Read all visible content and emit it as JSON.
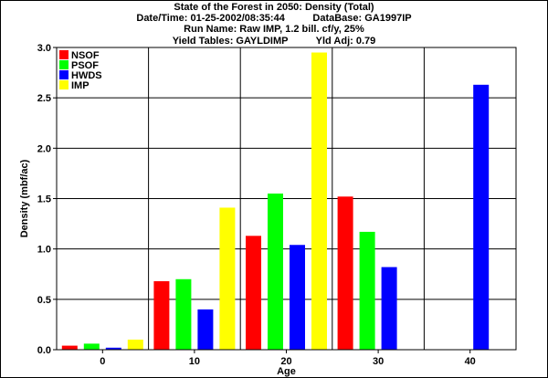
{
  "header": {
    "title": "State of the Forest in 2050: Density (Total)",
    "datetime": "Date/Time: 01-25-2002/08:35:44",
    "database": "DataBase: GA1997IP",
    "run_name": "Run Name: Raw IMP, 1.2 bill. cf/y, 25%",
    "yield_tables": "Yield Tables: GAYLDIMP",
    "yld_adj": "Yld Adj: 0.79"
  },
  "chart_data": {
    "type": "bar",
    "title": "State of the Forest in 2050: Density (Total)",
    "xlabel": "Age",
    "ylabel": "Density (mbf/ac)",
    "categories": [
      "0",
      "10",
      "20",
      "30",
      "40"
    ],
    "ylim": [
      0,
      3.0
    ],
    "yticks": [
      "0.0",
      "0.5",
      "1.0",
      "1.5",
      "2.0",
      "2.5",
      "3.0"
    ],
    "grid": true,
    "legend": "top-left",
    "series": [
      {
        "name": "NSOF",
        "color": "#ff0000",
        "values": [
          0.04,
          0.68,
          1.13,
          1.52,
          0
        ]
      },
      {
        "name": "PSOF",
        "color": "#00ff00",
        "values": [
          0.06,
          0.7,
          1.55,
          1.17,
          0
        ]
      },
      {
        "name": "HWDS",
        "color": "#0000ff",
        "values": [
          0.02,
          0.4,
          1.04,
          0.82,
          2.63
        ]
      },
      {
        "name": "IMP",
        "color": "#ffff00",
        "values": [
          0.1,
          1.41,
          2.95,
          0,
          0
        ]
      }
    ]
  }
}
